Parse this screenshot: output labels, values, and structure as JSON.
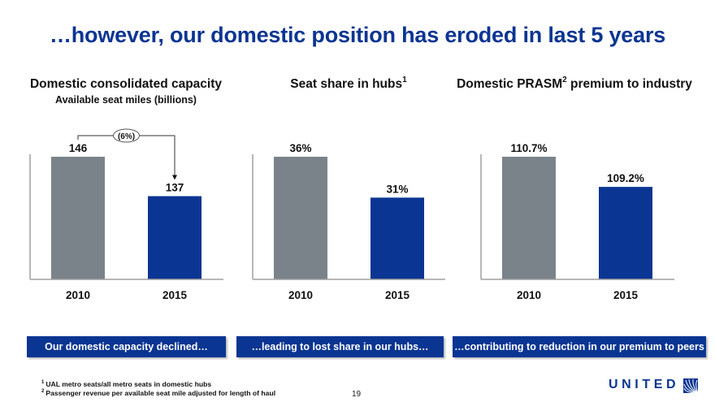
{
  "title": "…however, our domestic position has eroded in last 5 years",
  "colors": {
    "brand_blue": "#0b3592",
    "bar_gray": "#7b838a",
    "axis": "#a0a0a0"
  },
  "chart_data": [
    {
      "type": "bar",
      "title": "Domestic consolidated capacity",
      "subtitle": "Available seat miles (billions)",
      "title_sup": "",
      "categories": [
        "2010",
        "2015"
      ],
      "values": [
        146,
        137
      ],
      "labels": [
        "146",
        "137"
      ],
      "bar_colors": [
        "#7b838a",
        "#0b3592"
      ],
      "annotation": {
        "text": "(6%)",
        "type": "change-arrow",
        "from": "2010",
        "to": "2015"
      },
      "ylim": [
        118,
        146
      ],
      "grid": false
    },
    {
      "type": "bar",
      "title": "Seat share in hubs",
      "title_sup": "1",
      "subtitle": "",
      "categories": [
        "2010",
        "2015"
      ],
      "values": [
        36,
        31
      ],
      "labels": [
        "36%",
        "31%"
      ],
      "bar_colors": [
        "#7b838a",
        "#0b3592"
      ],
      "ylim": [
        21,
        36
      ],
      "grid": false
    },
    {
      "type": "bar",
      "title": "Domestic PRASM",
      "title_sup": "2",
      "title_suffix": " premium to industry",
      "subtitle": "",
      "categories": [
        "2010",
        "2015"
      ],
      "values": [
        110.7,
        109.2
      ],
      "labels": [
        "110.7%",
        "109.2%"
      ],
      "bar_colors": [
        "#7b838a",
        "#0b3592"
      ],
      "ylim": [
        104.6,
        110.7
      ],
      "grid": false
    }
  ],
  "callouts": [
    "Our domestic capacity declined…",
    "…leading to lost share in our hubs…",
    "…contributing to reduction in our premium to peers"
  ],
  "footnotes": [
    {
      "num": "1",
      "text": "UAL metro seats/all metro seats in domestic hubs"
    },
    {
      "num": "2",
      "text": "Passenger revenue per available seat mile adjusted for length of haul"
    }
  ],
  "page_number": "19",
  "logo": {
    "text": "UNITED",
    "icon": "united-globe-icon"
  }
}
